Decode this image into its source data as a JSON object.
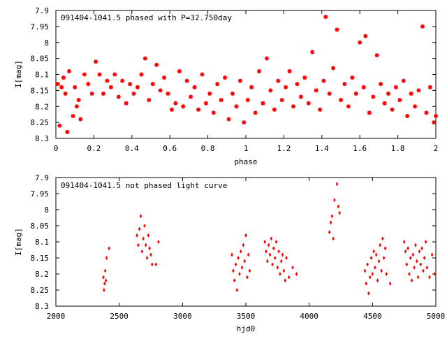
{
  "chart_data": [
    {
      "type": "scatter",
      "title": "091404-1041.5 phased with P=32.750day",
      "xlabel": "phase",
      "ylabel": "I[mag]",
      "xlim": [
        0,
        2
      ],
      "ylim": [
        8.3,
        7.9
      ],
      "y_inverted": true,
      "x_ticks": [
        "0",
        "0.2",
        "0.4",
        "0.6",
        "0.8",
        "1",
        "1.2",
        "1.4",
        "1.6",
        "1.8",
        "2"
      ],
      "y_ticks": [
        "7.9",
        "7.95",
        "8",
        "8.05",
        "8.1",
        "8.15",
        "8.2",
        "8.25",
        "8.3"
      ],
      "marker_color": "#ff0000",
      "series": [
        {
          "points": [
            [
              0.01,
              8.13
            ],
            [
              0.02,
              8.26
            ],
            [
              0.03,
              8.14
            ],
            [
              0.04,
              8.11
            ],
            [
              0.05,
              8.16
            ],
            [
              0.06,
              8.28
            ],
            [
              0.07,
              8.09
            ],
            [
              0.09,
              8.23
            ],
            [
              0.1,
              8.14
            ],
            [
              0.11,
              8.2
            ],
            [
              0.12,
              8.18
            ],
            [
              0.13,
              8.24
            ],
            [
              0.15,
              8.1
            ],
            [
              0.17,
              8.13
            ],
            [
              0.19,
              8.16
            ],
            [
              0.21,
              8.06
            ],
            [
              0.23,
              8.1
            ],
            [
              0.25,
              8.16
            ],
            [
              0.27,
              8.12
            ],
            [
              0.29,
              8.14
            ],
            [
              0.31,
              8.1
            ],
            [
              0.33,
              8.17
            ],
            [
              0.35,
              8.12
            ],
            [
              0.37,
              8.19
            ],
            [
              0.39,
              8.13
            ],
            [
              0.41,
              8.16
            ],
            [
              0.43,
              8.14
            ],
            [
              0.45,
              8.1
            ],
            [
              0.47,
              8.05
            ],
            [
              0.49,
              8.18
            ],
            [
              0.51,
              8.13
            ],
            [
              0.53,
              8.07
            ],
            [
              0.55,
              8.15
            ],
            [
              0.57,
              8.11
            ],
            [
              0.59,
              8.16
            ],
            [
              0.61,
              8.21
            ],
            [
              0.63,
              8.19
            ],
            [
              0.65,
              8.09
            ],
            [
              0.67,
              8.2
            ],
            [
              0.69,
              8.12
            ],
            [
              0.71,
              8.17
            ],
            [
              0.73,
              8.14
            ],
            [
              0.75,
              8.21
            ],
            [
              0.77,
              8.1
            ],
            [
              0.79,
              8.19
            ],
            [
              0.81,
              8.16
            ],
            [
              0.83,
              8.22
            ],
            [
              0.85,
              8.13
            ],
            [
              0.87,
              8.18
            ],
            [
              0.89,
              8.11
            ],
            [
              0.91,
              8.24
            ],
            [
              0.93,
              8.16
            ],
            [
              0.95,
              8.2
            ],
            [
              0.97,
              8.12
            ],
            [
              0.99,
              8.25
            ],
            [
              1.01,
              8.18
            ],
            [
              1.03,
              8.14
            ],
            [
              1.05,
              8.22
            ],
            [
              1.07,
              8.09
            ],
            [
              1.09,
              8.19
            ],
            [
              1.11,
              8.05
            ],
            [
              1.13,
              8.15
            ],
            [
              1.15,
              8.21
            ],
            [
              1.17,
              8.12
            ],
            [
              1.19,
              8.18
            ],
            [
              1.21,
              8.14
            ],
            [
              1.23,
              8.09
            ],
            [
              1.25,
              8.2
            ],
            [
              1.27,
              8.13
            ],
            [
              1.29,
              8.17
            ],
            [
              1.31,
              8.11
            ],
            [
              1.33,
              8.19
            ],
            [
              1.35,
              8.03
            ],
            [
              1.37,
              8.15
            ],
            [
              1.39,
              8.21
            ],
            [
              1.41,
              8.12
            ],
            [
              1.42,
              7.92
            ],
            [
              1.44,
              8.16
            ],
            [
              1.46,
              8.08
            ],
            [
              1.48,
              7.96
            ],
            [
              1.5,
              8.18
            ],
            [
              1.52,
              8.13
            ],
            [
              1.54,
              8.2
            ],
            [
              1.56,
              8.11
            ],
            [
              1.58,
              8.16
            ],
            [
              1.6,
              8.0
            ],
            [
              1.62,
              8.14
            ],
            [
              1.63,
              7.98
            ],
            [
              1.65,
              8.22
            ],
            [
              1.67,
              8.17
            ],
            [
              1.69,
              8.04
            ],
            [
              1.71,
              8.13
            ],
            [
              1.73,
              8.19
            ],
            [
              1.75,
              8.16
            ],
            [
              1.77,
              8.21
            ],
            [
              1.79,
              8.14
            ],
            [
              1.81,
              8.18
            ],
            [
              1.83,
              8.12
            ],
            [
              1.85,
              8.23
            ],
            [
              1.87,
              8.16
            ],
            [
              1.89,
              8.2
            ],
            [
              1.91,
              8.15
            ],
            [
              1.93,
              7.95
            ],
            [
              1.95,
              8.22
            ],
            [
              1.97,
              8.14
            ],
            [
              1.99,
              8.25
            ],
            [
              2.0,
              8.23
            ]
          ]
        }
      ]
    },
    {
      "type": "scatter",
      "title": "091404-1041.5 not phased light curve",
      "xlabel": "hjd0",
      "ylabel": "I[mag]",
      "xlim": [
        2000,
        5000
      ],
      "ylim": [
        8.3,
        7.9
      ],
      "y_inverted": true,
      "x_ticks": [
        "2000",
        "2500",
        "3000",
        "3500",
        "4000",
        "4500",
        "5000"
      ],
      "y_ticks": [
        "7.9",
        "7.95",
        "8",
        "8.05",
        "8.1",
        "8.15",
        "8.2",
        "8.25",
        "8.3"
      ],
      "marker_color": "#ff0000",
      "series": [
        {
          "points": [
            [
              2375,
              8.21
            ],
            [
              2380,
              8.25
            ],
            [
              2385,
              8.23
            ],
            [
              2390,
              8.19
            ],
            [
              2395,
              8.22
            ],
            [
              2400,
              8.15
            ],
            [
              2420,
              8.12
            ],
            [
              2640,
              8.08
            ],
            [
              2650,
              8.11
            ],
            [
              2660,
              8.06
            ],
            [
              2670,
              8.02
            ],
            [
              2680,
              8.13
            ],
            [
              2690,
              8.09
            ],
            [
              2700,
              8.05
            ],
            [
              2710,
              8.11
            ],
            [
              2720,
              8.15
            ],
            [
              2730,
              8.08
            ],
            [
              2740,
              8.12
            ],
            [
              2750,
              8.14
            ],
            [
              2760,
              8.17
            ],
            [
              2790,
              8.17
            ],
            [
              2810,
              8.1
            ],
            [
              3390,
              8.14
            ],
            [
              3400,
              8.19
            ],
            [
              3410,
              8.22
            ],
            [
              3420,
              8.17
            ],
            [
              3430,
              8.25
            ],
            [
              3440,
              8.15
            ],
            [
              3450,
              8.2
            ],
            [
              3460,
              8.13
            ],
            [
              3470,
              8.18
            ],
            [
              3480,
              8.11
            ],
            [
              3490,
              8.16
            ],
            [
              3500,
              8.08
            ],
            [
              3510,
              8.21
            ],
            [
              3520,
              8.14
            ],
            [
              3530,
              8.19
            ],
            [
              3650,
              8.1
            ],
            [
              3660,
              8.13
            ],
            [
              3670,
              8.16
            ],
            [
              3680,
              8.11
            ],
            [
              3690,
              8.14
            ],
            [
              3700,
              8.09
            ],
            [
              3710,
              8.17
            ],
            [
              3720,
              8.12
            ],
            [
              3730,
              8.15
            ],
            [
              3740,
              8.1
            ],
            [
              3750,
              8.18
            ],
            [
              3760,
              8.13
            ],
            [
              3770,
              8.2
            ],
            [
              3780,
              8.16
            ],
            [
              3790,
              8.14
            ],
            [
              3800,
              8.19
            ],
            [
              3810,
              8.22
            ],
            [
              3820,
              8.15
            ],
            [
              3840,
              8.21
            ],
            [
              3870,
              8.18
            ],
            [
              3900,
              8.2
            ],
            [
              4160,
              8.07
            ],
            [
              4170,
              8.04
            ],
            [
              4180,
              8.02
            ],
            [
              4190,
              8.09
            ],
            [
              4200,
              7.97
            ],
            [
              4220,
              7.92
            ],
            [
              4230,
              7.99
            ],
            [
              4240,
              8.01
            ],
            [
              4440,
              8.19
            ],
            [
              4450,
              8.23
            ],
            [
              4460,
              8.17
            ],
            [
              4470,
              8.26
            ],
            [
              4480,
              8.21
            ],
            [
              4490,
              8.15
            ],
            [
              4500,
              8.2
            ],
            [
              4510,
              8.13
            ],
            [
              4520,
              8.18
            ],
            [
              4530,
              8.14
            ],
            [
              4540,
              8.22
            ],
            [
              4550,
              8.16
            ],
            [
              4560,
              8.11
            ],
            [
              4570,
              8.19
            ],
            [
              4580,
              8.09
            ],
            [
              4590,
              8.15
            ],
            [
              4600,
              8.12
            ],
            [
              4610,
              8.2
            ],
            [
              4640,
              8.23
            ],
            [
              4750,
              8.1
            ],
            [
              4760,
              8.13
            ],
            [
              4770,
              8.17
            ],
            [
              4780,
              8.12
            ],
            [
              4790,
              8.2
            ],
            [
              4800,
              8.15
            ],
            [
              4810,
              8.22
            ],
            [
              4820,
              8.14
            ],
            [
              4830,
              8.18
            ],
            [
              4840,
              8.11
            ],
            [
              4850,
              8.16
            ],
            [
              4860,
              8.21
            ],
            [
              4870,
              8.13
            ],
            [
              4880,
              8.17
            ],
            [
              4890,
              8.12
            ],
            [
              4900,
              8.19
            ],
            [
              4910,
              8.15
            ],
            [
              4920,
              8.1
            ],
            [
              4930,
              8.18
            ],
            [
              4950,
              8.21
            ],
            [
              4970,
              8.14
            ],
            [
              4990,
              8.2
            ]
          ]
        }
      ]
    }
  ]
}
